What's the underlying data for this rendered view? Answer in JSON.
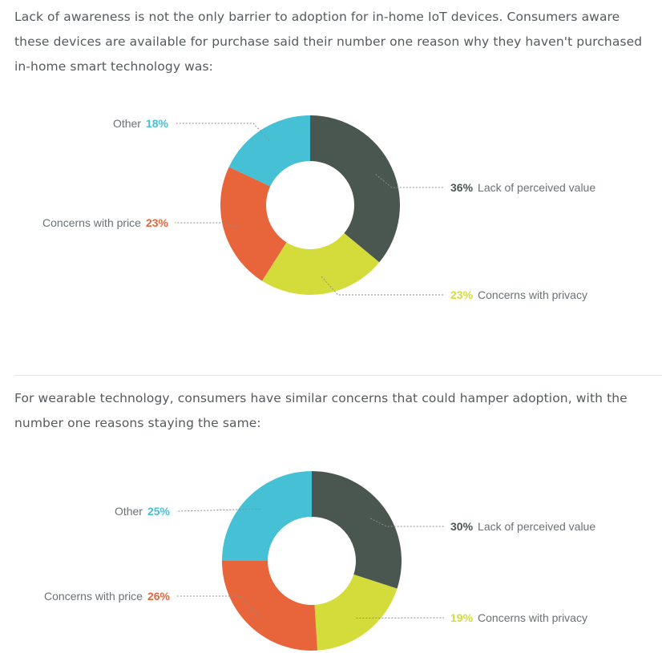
{
  "intro_1": "Lack of awareness is not the only barrier to adoption for in-home IoT devices. Consumers aware these devices are available for purchase said their number one reason why they haven't purchased in-home smart technology was:",
  "intro_2": "For wearable technology, consumers have similar concerns that could hamper adoption, with the number one reasons staying the same:",
  "colors": {
    "value": "#4a5650",
    "privacy": "#d3dc3a",
    "price": "#e8643a",
    "other": "#45c0d4",
    "leader": "#8a8f92"
  },
  "chart_data": [
    {
      "type": "pie",
      "donut": true,
      "title": "",
      "slices": [
        {
          "label": "Lack of perceived value",
          "value": 36,
          "display": "36%",
          "color_key": "value",
          "side": "right"
        },
        {
          "label": "Concerns with privacy",
          "value": 23,
          "display": "23%",
          "color_key": "privacy",
          "side": "right"
        },
        {
          "label": "Concerns with price",
          "value": 23,
          "display": "23%",
          "color_key": "price",
          "side": "left"
        },
        {
          "label": "Other",
          "value": 18,
          "display": "18%",
          "color_key": "other",
          "side": "left"
        }
      ]
    },
    {
      "type": "pie",
      "donut": true,
      "title": "",
      "slices": [
        {
          "label": "Lack of perceived value",
          "value": 30,
          "display": "30%",
          "color_key": "value",
          "side": "right"
        },
        {
          "label": "Concerns with privacy",
          "value": 19,
          "display": "19%",
          "color_key": "privacy",
          "side": "right"
        },
        {
          "label": "Concerns with price",
          "value": 26,
          "display": "26%",
          "color_key": "price",
          "side": "left"
        },
        {
          "label": "Other",
          "value": 25,
          "display": "25%",
          "color_key": "other",
          "side": "left"
        }
      ]
    }
  ]
}
